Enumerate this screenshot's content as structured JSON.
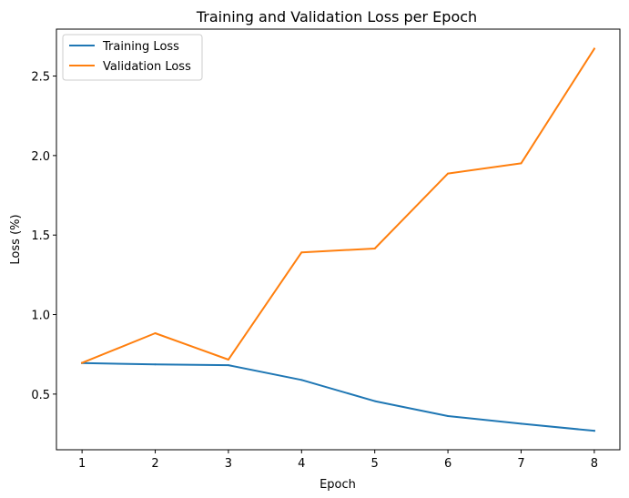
{
  "chart_data": {
    "type": "line",
    "title": "Training and Validation Loss per Epoch",
    "xlabel": "Epoch",
    "ylabel": "Loss (%)",
    "x": [
      1,
      2,
      3,
      4,
      5,
      6,
      7,
      8
    ],
    "xlim": [
      0.65,
      8.35
    ],
    "ylim": [
      0.15,
      2.795
    ],
    "xticks": [
      "1",
      "2",
      "3",
      "4",
      "5",
      "6",
      "7",
      "8"
    ],
    "yticks": [
      "0.5",
      "1.0",
      "1.5",
      "2.0",
      "2.5"
    ],
    "grid": false,
    "legend_position": "top-left",
    "series": [
      {
        "name": "Training Loss",
        "color": "#1f77b4",
        "values": [
          0.695,
          0.687,
          0.682,
          0.589,
          0.456,
          0.362,
          0.314,
          0.269
        ]
      },
      {
        "name": "Validation Loss",
        "color": "#ff7f0e",
        "values": [
          0.696,
          0.883,
          0.717,
          1.391,
          1.415,
          1.887,
          1.951,
          2.672
        ]
      }
    ]
  }
}
